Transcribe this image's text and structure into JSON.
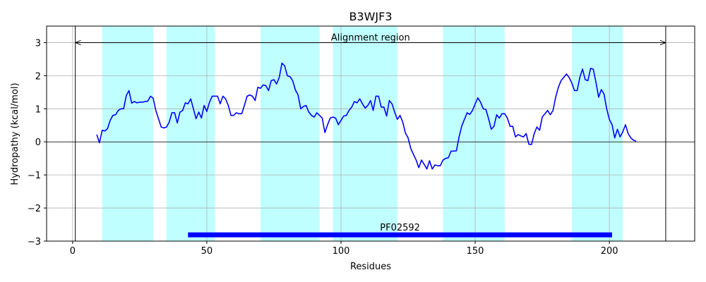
{
  "chart_data": {
    "type": "line",
    "title": "B3WJF3",
    "xlabel": "Residues",
    "ylabel": "Hydropathy (kcal/mol)",
    "x": [
      9,
      10,
      11,
      12,
      13,
      14,
      15,
      16,
      17,
      18,
      19,
      20,
      21,
      22,
      23,
      24,
      25,
      26,
      27,
      28,
      29,
      30,
      31,
      32,
      33,
      34,
      35,
      36,
      37,
      38,
      39,
      40,
      41,
      42,
      43,
      44,
      45,
      46,
      47,
      48,
      49,
      50,
      51,
      52,
      53,
      54,
      55,
      56,
      57,
      58,
      59,
      60,
      61,
      62,
      63,
      64,
      65,
      66,
      67,
      68,
      69,
      70,
      71,
      72,
      73,
      74,
      75,
      76,
      77,
      78,
      79,
      80,
      81,
      82,
      83,
      84,
      85,
      86,
      87,
      88,
      89,
      90,
      91,
      92,
      93,
      94,
      95,
      96,
      97,
      98,
      99,
      100,
      101,
      102,
      103,
      104,
      105,
      106,
      107,
      108,
      109,
      110,
      111,
      112,
      113,
      114,
      115,
      116,
      117,
      118,
      119,
      120,
      121,
      122,
      123,
      124,
      125,
      126,
      127,
      128,
      129,
      130,
      131,
      132,
      133,
      134,
      135,
      136,
      137,
      138,
      139,
      140,
      141,
      142,
      143,
      144,
      145,
      146,
      147,
      148,
      149,
      150,
      151,
      152,
      153,
      154,
      155,
      156,
      157,
      158,
      159,
      160,
      161,
      162,
      163,
      164,
      165,
      166,
      167,
      168,
      169,
      170,
      171,
      172,
      173,
      174,
      175,
      176,
      177,
      178,
      179,
      180,
      181,
      182,
      183,
      184,
      185,
      186,
      187,
      188,
      189,
      190,
      191,
      192,
      193,
      194,
      195,
      196,
      197,
      198,
      199,
      200,
      201,
      202,
      203,
      204,
      205,
      206,
      207,
      208,
      209,
      210
    ],
    "values": [
      0.22,
      -0.03,
      0.35,
      0.33,
      0.4,
      0.65,
      0.8,
      0.82,
      0.95,
      1.0,
      1.0,
      1.4,
      1.55,
      1.17,
      1.22,
      1.18,
      1.2,
      1.2,
      1.22,
      1.23,
      1.38,
      1.32,
      0.95,
      0.7,
      0.45,
      0.42,
      0.45,
      0.6,
      0.88,
      0.88,
      0.57,
      0.9,
      0.95,
      1.18,
      1.15,
      1.3,
      1.0,
      0.7,
      0.9,
      0.72,
      1.1,
      0.92,
      1.2,
      1.38,
      1.38,
      1.38,
      1.15,
      1.38,
      1.3,
      1.1,
      0.8,
      0.8,
      0.88,
      0.85,
      0.85,
      1.1,
      1.38,
      1.42,
      1.38,
      1.25,
      1.65,
      1.62,
      1.72,
      1.7,
      1.55,
      1.85,
      1.88,
      1.75,
      1.95,
      2.38,
      2.3,
      2.0,
      1.97,
      1.85,
      1.57,
      1.42,
      1.0,
      1.07,
      1.1,
      0.9,
      0.8,
      0.75,
      0.88,
      0.8,
      0.72,
      0.28,
      0.52,
      0.72,
      0.75,
      0.72,
      0.52,
      0.65,
      0.78,
      0.8,
      0.95,
      1.05,
      1.22,
      1.18,
      1.3,
      1.15,
      1.02,
      1.1,
      1.25,
      0.95,
      1.38,
      1.38,
      1.05,
      1.05,
      0.78,
      1.25,
      1.15,
      0.9,
      0.68,
      0.8,
      0.6,
      0.27,
      0.12,
      -0.2,
      -0.38,
      -0.55,
      -0.78,
      -0.55,
      -0.68,
      -0.82,
      -0.57,
      -0.82,
      -0.7,
      -0.72,
      -0.72,
      -0.55,
      -0.5,
      -0.48,
      -0.28,
      -0.28,
      -0.27,
      0.15,
      0.48,
      0.68,
      0.88,
      0.83,
      0.95,
      1.15,
      1.33,
      1.2,
      1.0,
      0.98,
      0.7,
      0.38,
      0.47,
      0.82,
      0.72,
      0.85,
      0.85,
      0.72,
      0.47,
      0.47,
      0.15,
      0.22,
      0.18,
      0.15,
      0.25,
      -0.07,
      -0.08,
      0.25,
      0.45,
      0.35,
      0.75,
      0.85,
      0.95,
      0.82,
      0.95,
      1.35,
      1.65,
      1.85,
      1.95,
      2.05,
      1.95,
      1.78,
      1.55,
      1.55,
      1.95,
      2.2,
      1.88,
      1.85,
      2.22,
      2.2,
      1.8,
      1.35,
      1.58,
      1.45,
      1.0,
      0.68,
      0.52,
      0.12,
      0.38,
      0.15,
      0.3,
      0.52,
      0.25,
      0.12,
      0.05,
      0.02
    ],
    "color": "#0000ff",
    "highlight_regions": [
      [
        11,
        30
      ],
      [
        35,
        53
      ],
      [
        70,
        92
      ],
      [
        97,
        121
      ],
      [
        138,
        161
      ],
      [
        186,
        205
      ]
    ],
    "highlight_color": "#bfffff",
    "alignment_region": {
      "label": "Alignment region",
      "start": 1,
      "end": 221,
      "y": 3
    },
    "domain": {
      "label": "PF02592",
      "start": 43,
      "end": 201,
      "y": -2.81,
      "color": "#0000ff"
    },
    "hline": 0,
    "xlim": [
      -9.7,
      231.8
    ],
    "ylim": [
      -3,
      3.5
    ],
    "xticks": [
      0,
      50,
      100,
      150,
      200
    ],
    "yticks": [
      {
        "value": -3,
        "label": "−3"
      },
      {
        "value": -2,
        "label": "−2"
      },
      {
        "value": -1,
        "label": "−1"
      },
      0,
      1,
      2,
      3
    ],
    "grid": true
  }
}
